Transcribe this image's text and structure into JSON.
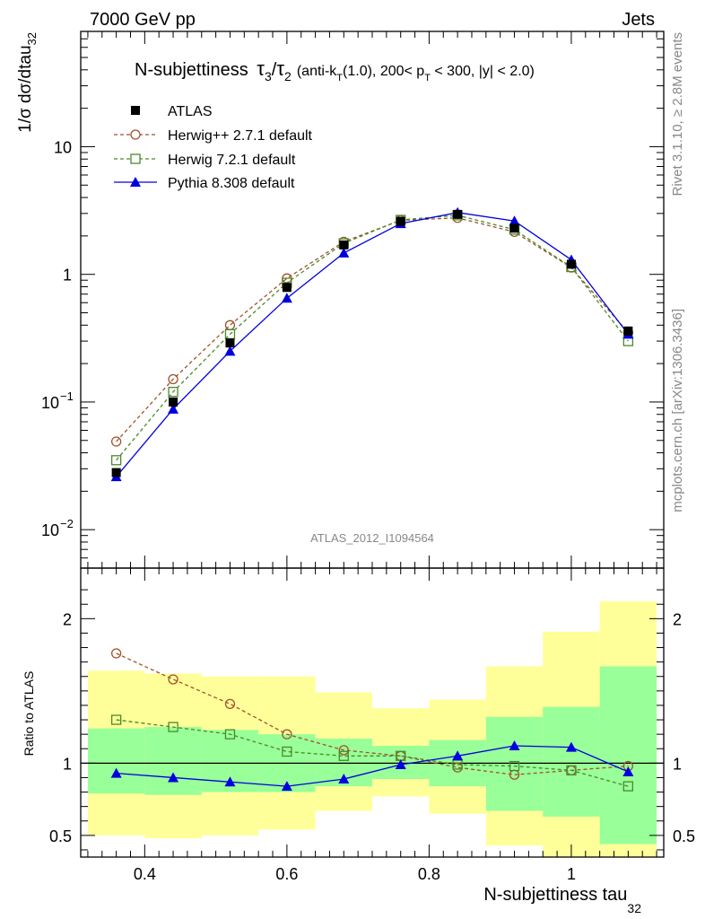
{
  "header": {
    "left": "7000 GeV pp",
    "right": "Jets"
  },
  "side": {
    "rivet": "Rivet 3.1.10, ≥ 2.8M events",
    "mcplots": "mcplots.cern.ch [arXiv:1306.3436]"
  },
  "watermark": "ATLAS_2012_I1094564",
  "plot_title": {
    "main": "N-subjettiness",
    "tau3": "τ",
    "sub3": "3",
    "slash": "/",
    "tau2": "τ",
    "sub2": "2",
    "cuts_a": "(anti-k",
    "cuts_a_sub": "T",
    "cuts_b": "(1.0), 200< p",
    "cuts_b_sub": "T",
    "cuts_c": " < 300, |y| < 2.0)"
  },
  "y_label_main": "1/σ dσ/dtau",
  "y_label_main_sub": "32",
  "y_label_ratio": "Ratio to ATLAS",
  "x_label": "N-subjettiness tau",
  "x_label_sub": "32",
  "colors": {
    "atlas": "#000000",
    "herwigpp": "#a0522d",
    "herwig7": "#4a8a2a",
    "pythia": "#0000dd",
    "band_inner": "#99ff99",
    "band_outer": "#ffff99"
  },
  "chart_data": {
    "type": "line",
    "x": [
      0.36,
      0.44,
      0.52,
      0.6,
      0.68,
      0.76,
      0.84,
      0.92,
      1.0,
      1.08
    ],
    "x_bin_edges": [
      0.32,
      0.4,
      0.48,
      0.56,
      0.64,
      0.72,
      0.8,
      0.88,
      0.96,
      1.04,
      1.12
    ],
    "xlim": [
      0.31,
      1.13
    ],
    "x_ticks": [
      0.4,
      0.6,
      0.8,
      1.0
    ],
    "x_tick_labels": [
      "0.4",
      "0.6",
      "0.8",
      "1"
    ],
    "main": {
      "yscale": "log",
      "ylim": [
        0.005,
        80
      ],
      "y_ticks": [
        0.01,
        0.1,
        1,
        10
      ],
      "y_tick_labels": [
        [
          "10",
          "−2"
        ],
        [
          "10",
          "−1"
        ],
        [
          "1",
          ""
        ],
        [
          "10",
          ""
        ]
      ]
    },
    "ratio": {
      "ylim": [
        0.35,
        2.35
      ],
      "y_ticks": [
        0.5,
        1,
        2
      ],
      "y_tick_labels": [
        "0.5",
        "1",
        "2"
      ]
    },
    "series": [
      {
        "key": "atlas",
        "name": "ATLAS",
        "marker": "square-filled",
        "values": [
          0.028,
          0.1,
          0.29,
          0.79,
          1.7,
          2.6,
          2.95,
          2.3,
          1.2,
          0.36
        ]
      },
      {
        "key": "herwigpp",
        "name": "Herwig++ 2.7.1 default",
        "marker": "circle-open",
        "style": "dashed",
        "values": [
          0.049,
          0.151,
          0.4,
          0.93,
          1.8,
          2.65,
          2.77,
          2.15,
          1.13,
          0.35
        ]
      },
      {
        "key": "herwig7",
        "name": "Herwig 7.2.1 default",
        "marker": "square-open",
        "style": "dashed",
        "values": [
          0.035,
          0.12,
          0.34,
          0.86,
          1.75,
          2.67,
          2.9,
          2.24,
          1.14,
          0.3
        ]
      },
      {
        "key": "pythia",
        "name": "Pythia 8.308 default",
        "marker": "triangle-filled",
        "style": "solid",
        "values": [
          0.026,
          0.088,
          0.25,
          0.65,
          1.47,
          2.5,
          3.05,
          2.62,
          1.3,
          0.34
        ]
      }
    ],
    "ratio_series": [
      {
        "key": "herwigpp",
        "values": [
          1.76,
          1.58,
          1.41,
          1.2,
          1.09,
          1.05,
          0.97,
          0.92,
          0.95,
          0.98
        ]
      },
      {
        "key": "herwig7",
        "values": [
          1.3,
          1.25,
          1.2,
          1.08,
          1.05,
          1.05,
          0.99,
          0.98,
          0.95,
          0.84
        ]
      },
      {
        "key": "pythia",
        "values": [
          0.93,
          0.9,
          0.87,
          0.84,
          0.89,
          0.99,
          1.05,
          1.12,
          1.11,
          0.94
        ]
      }
    ],
    "ratio_band_inner": [
      [
        0.79,
        1.24
      ],
      [
        0.78,
        1.25
      ],
      [
        0.8,
        1.23
      ],
      [
        0.8,
        1.2
      ],
      [
        0.84,
        1.17
      ],
      [
        0.89,
        1.12
      ],
      [
        0.84,
        1.16
      ],
      [
        0.67,
        1.32
      ],
      [
        0.63,
        1.39
      ],
      [
        0.44,
        1.67
      ]
    ],
    "ratio_band_outer": [
      [
        0.5,
        1.64
      ],
      [
        0.48,
        1.62
      ],
      [
        0.5,
        1.6
      ],
      [
        0.54,
        1.6
      ],
      [
        0.67,
        1.49
      ],
      [
        0.77,
        1.38
      ],
      [
        0.65,
        1.44
      ],
      [
        0.43,
        1.67
      ],
      [
        0.35,
        1.91
      ],
      [
        0.35,
        2.12
      ]
    ]
  }
}
